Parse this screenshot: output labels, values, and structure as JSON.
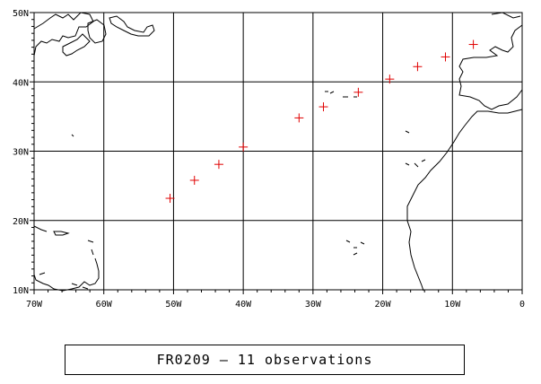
{
  "map": {
    "lon_range": [
      -70,
      0
    ],
    "lat_range": [
      10,
      50
    ],
    "lon_ticks": [
      {
        "value": -70,
        "label": "70W"
      },
      {
        "value": -60,
        "label": "60W"
      },
      {
        "value": -50,
        "label": "50W"
      },
      {
        "value": -40,
        "label": "40W"
      },
      {
        "value": -30,
        "label": "30W"
      },
      {
        "value": -20,
        "label": "20W"
      },
      {
        "value": -10,
        "label": "10W"
      },
      {
        "value": 0,
        "label": "0"
      }
    ],
    "lat_ticks": [
      {
        "value": 10,
        "label": "10N"
      },
      {
        "value": 20,
        "label": "20N"
      },
      {
        "value": 30,
        "label": "30N"
      },
      {
        "value": 40,
        "label": "40N"
      },
      {
        "value": 50,
        "label": "50N"
      }
    ],
    "grid": true,
    "marker_color": "#e00000",
    "observations": [
      {
        "lon": -50.5,
        "lat": 23.2
      },
      {
        "lon": -47.0,
        "lat": 25.8
      },
      {
        "lon": -43.5,
        "lat": 28.1
      },
      {
        "lon": -40.0,
        "lat": 30.6
      },
      {
        "lon": -32.0,
        "lat": 34.8
      },
      {
        "lon": -28.5,
        "lat": 36.4
      },
      {
        "lon": -23.5,
        "lat": 38.5
      },
      {
        "lon": -19.0,
        "lat": 40.4
      },
      {
        "lon": -15.0,
        "lat": 42.2
      },
      {
        "lon": -11.0,
        "lat": 43.6
      },
      {
        "lon": -7.0,
        "lat": 45.4
      }
    ]
  },
  "caption": {
    "text": "FR0209 — 11 observations"
  }
}
